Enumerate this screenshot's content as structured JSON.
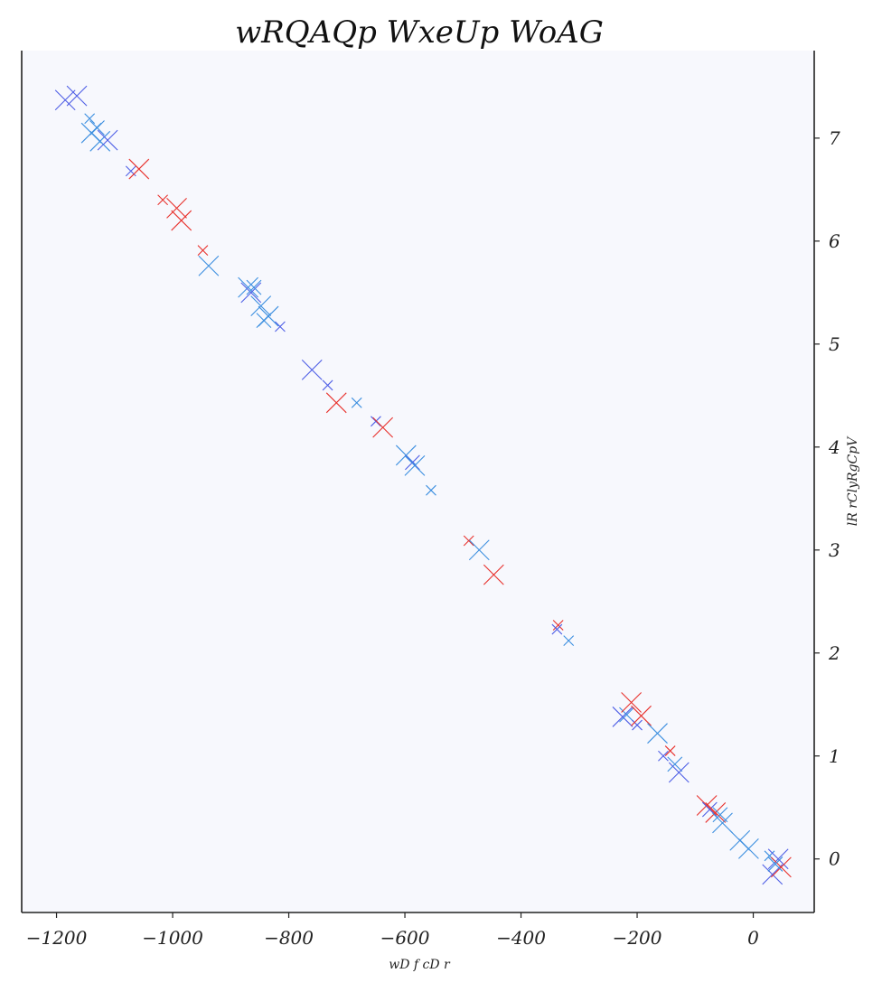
{
  "chart_data": {
    "type": "scatter",
    "title": "wRQAQp WxeUp WoAG",
    "xlabel": "wD f cD r",
    "ylabel": "lR rClyRgCpV",
    "xlim": [
      -1260,
      105
    ],
    "ylim": [
      -0.52,
      7.85
    ],
    "xticks": [
      -1200,
      -1000,
      -800,
      -600,
      -400,
      -200,
      0
    ],
    "yticks": [
      0,
      1,
      2,
      3,
      4,
      5,
      6,
      7
    ],
    "xtick_labels": [
      "−1200",
      "−1000",
      "−800",
      "−600",
      "−400",
      "−200",
      "0"
    ],
    "ytick_labels": [
      "0",
      "1",
      "2",
      "3",
      "4",
      "5",
      "6",
      "7"
    ],
    "y_axis_side": "right",
    "grid": false,
    "legend": false,
    "plot_background": "#f7f8fd",
    "marker": "x",
    "colors": {
      "royal": "#4f5fe6",
      "sky": "#3c8fe0",
      "red": "#e8312c"
    },
    "points": [
      {
        "x": -1185,
        "y": 7.37,
        "size": "large",
        "color": "royal"
      },
      {
        "x": -1165,
        "y": 7.41,
        "size": "large",
        "color": "royal"
      },
      {
        "x": -1143,
        "y": 7.19,
        "size": "small",
        "color": "sky"
      },
      {
        "x": -1140,
        "y": 7.05,
        "size": "large",
        "color": "sky"
      },
      {
        "x": -1130,
        "y": 7.1,
        "size": "medium",
        "color": "sky"
      },
      {
        "x": -1125,
        "y": 6.97,
        "size": "large",
        "color": "sky"
      },
      {
        "x": -1112,
        "y": 6.98,
        "size": "large",
        "color": "royal"
      },
      {
        "x": -1072,
        "y": 6.68,
        "size": "small",
        "color": "royal"
      },
      {
        "x": -1058,
        "y": 6.7,
        "size": "large",
        "color": "red"
      },
      {
        "x": -1017,
        "y": 6.4,
        "size": "small",
        "color": "red"
      },
      {
        "x": -993,
        "y": 6.32,
        "size": "large",
        "color": "red"
      },
      {
        "x": -985,
        "y": 6.2,
        "size": "large",
        "color": "red"
      },
      {
        "x": -948,
        "y": 5.91,
        "size": "small",
        "color": "red"
      },
      {
        "x": -938,
        "y": 5.76,
        "size": "large",
        "color": "sky"
      },
      {
        "x": -870,
        "y": 5.55,
        "size": "large",
        "color": "sky"
      },
      {
        "x": -865,
        "y": 5.5,
        "size": "large",
        "color": "royal"
      },
      {
        "x": -860,
        "y": 5.55,
        "size": "medium",
        "color": "sky"
      },
      {
        "x": -848,
        "y": 5.37,
        "size": "large",
        "color": "sky"
      },
      {
        "x": -843,
        "y": 5.23,
        "size": "medium",
        "color": "sky"
      },
      {
        "x": -835,
        "y": 5.27,
        "size": "large",
        "color": "sky"
      },
      {
        "x": -815,
        "y": 5.17,
        "size": "small",
        "color": "royal"
      },
      {
        "x": -760,
        "y": 4.75,
        "size": "large",
        "color": "royal"
      },
      {
        "x": -733,
        "y": 4.6,
        "size": "small",
        "color": "royal"
      },
      {
        "x": -718,
        "y": 4.43,
        "size": "large",
        "color": "red"
      },
      {
        "x": -683,
        "y": 4.43,
        "size": "small",
        "color": "sky"
      },
      {
        "x": -650,
        "y": 4.25,
        "size": "small",
        "color": "royal"
      },
      {
        "x": -638,
        "y": 4.19,
        "size": "large",
        "color": "red"
      },
      {
        "x": -598,
        "y": 3.92,
        "size": "large",
        "color": "sky"
      },
      {
        "x": -587,
        "y": 3.85,
        "size": "medium",
        "color": "royal"
      },
      {
        "x": -583,
        "y": 3.82,
        "size": "large",
        "color": "sky"
      },
      {
        "x": -555,
        "y": 3.58,
        "size": "small",
        "color": "sky"
      },
      {
        "x": -490,
        "y": 3.09,
        "size": "small",
        "color": "red"
      },
      {
        "x": -472,
        "y": 3.0,
        "size": "large",
        "color": "sky"
      },
      {
        "x": -447,
        "y": 2.76,
        "size": "large",
        "color": "red"
      },
      {
        "x": -336,
        "y": 2.27,
        "size": "small",
        "color": "red"
      },
      {
        "x": -338,
        "y": 2.23,
        "size": "small",
        "color": "royal"
      },
      {
        "x": -318,
        "y": 2.12,
        "size": "small",
        "color": "sky"
      },
      {
        "x": -225,
        "y": 1.38,
        "size": "large",
        "color": "royal"
      },
      {
        "x": -218,
        "y": 1.4,
        "size": "medium",
        "color": "sky"
      },
      {
        "x": -210,
        "y": 1.52,
        "size": "large",
        "color": "red"
      },
      {
        "x": -200,
        "y": 1.3,
        "size": "small",
        "color": "royal"
      },
      {
        "x": -193,
        "y": 1.39,
        "size": "large",
        "color": "red"
      },
      {
        "x": -165,
        "y": 1.22,
        "size": "large",
        "color": "sky"
      },
      {
        "x": -155,
        "y": 1.0,
        "size": "small",
        "color": "royal"
      },
      {
        "x": -143,
        "y": 1.05,
        "size": "small",
        "color": "red"
      },
      {
        "x": -135,
        "y": 0.92,
        "size": "medium",
        "color": "sky"
      },
      {
        "x": -128,
        "y": 0.84,
        "size": "large",
        "color": "royal"
      },
      {
        "x": -80,
        "y": 0.52,
        "size": "large",
        "color": "red"
      },
      {
        "x": -75,
        "y": 0.48,
        "size": "medium",
        "color": "royal"
      },
      {
        "x": -65,
        "y": 0.45,
        "size": "large",
        "color": "red"
      },
      {
        "x": -57,
        "y": 0.43,
        "size": "medium",
        "color": "sky"
      },
      {
        "x": -53,
        "y": 0.35,
        "size": "large",
        "color": "sky"
      },
      {
        "x": -23,
        "y": 0.18,
        "size": "large",
        "color": "sky"
      },
      {
        "x": -8,
        "y": 0.1,
        "size": "large",
        "color": "sky"
      },
      {
        "x": 28,
        "y": 0.03,
        "size": "small",
        "color": "sky"
      },
      {
        "x": 33,
        "y": -0.15,
        "size": "large",
        "color": "royal"
      },
      {
        "x": 43,
        "y": 0.0,
        "size": "large",
        "color": "royal"
      },
      {
        "x": 48,
        "y": -0.08,
        "size": "large",
        "color": "red"
      },
      {
        "x": 38,
        "y": -0.05,
        "size": "medium",
        "color": "sky"
      }
    ]
  }
}
